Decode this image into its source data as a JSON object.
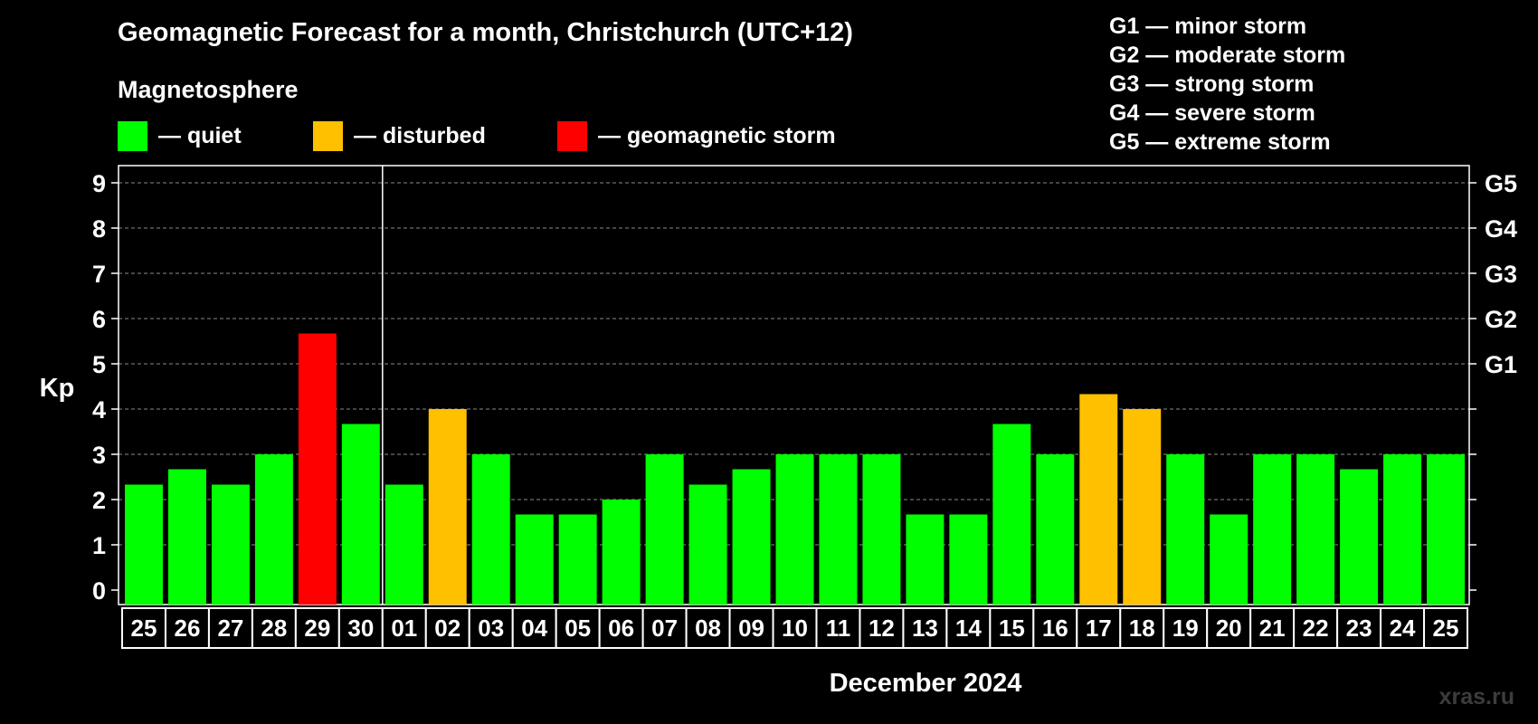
{
  "chart_data": {
    "type": "bar",
    "title": "Geomagnetic Forecast for a month, Christchurch (UTC+12)",
    "subtitle": "Magnetosphere",
    "ylabel": "Kp",
    "xlabel": "December 2024",
    "ylim": [
      0,
      9
    ],
    "y_ticks": [
      "0",
      "1",
      "2",
      "3",
      "4",
      "5",
      "6",
      "7",
      "8",
      "9"
    ],
    "right_axis_labels": [
      {
        "kp": 5,
        "label": "G1"
      },
      {
        "kp": 6,
        "label": "G2"
      },
      {
        "kp": 7,
        "label": "G3"
      },
      {
        "kp": 8,
        "label": "G4"
      },
      {
        "kp": 9,
        "label": "G5"
      }
    ],
    "categories": [
      "25",
      "26",
      "27",
      "28",
      "29",
      "30",
      "01",
      "02",
      "03",
      "04",
      "05",
      "06",
      "07",
      "08",
      "09",
      "10",
      "11",
      "12",
      "13",
      "14",
      "15",
      "16",
      "17",
      "18",
      "19",
      "20",
      "21",
      "22",
      "23",
      "24",
      "25"
    ],
    "values": [
      2.33,
      2.67,
      2.33,
      3.0,
      5.67,
      3.67,
      2.33,
      4.0,
      3.0,
      1.67,
      1.67,
      2.0,
      3.0,
      2.33,
      2.67,
      3.0,
      3.0,
      3.0,
      1.67,
      1.67,
      3.67,
      3.0,
      4.33,
      4.0,
      3.0,
      1.67,
      3.0,
      3.0,
      2.67,
      3.0,
      3.0
    ],
    "status": [
      "quiet",
      "quiet",
      "quiet",
      "quiet",
      "storm",
      "quiet",
      "quiet",
      "disturbed",
      "quiet",
      "quiet",
      "quiet",
      "quiet",
      "quiet",
      "quiet",
      "quiet",
      "quiet",
      "quiet",
      "quiet",
      "quiet",
      "quiet",
      "quiet",
      "quiet",
      "disturbed",
      "disturbed",
      "quiet",
      "quiet",
      "quiet",
      "quiet",
      "quiet",
      "quiet",
      "quiet"
    ],
    "month_divider_after_index": 5,
    "grid": true
  },
  "legend": {
    "quiet": {
      "label": "— quiet",
      "color": "#00ff00"
    },
    "disturbed": {
      "label": "— disturbed",
      "color": "#ffc000"
    },
    "storm": {
      "label": "— geomagnetic storm",
      "color": "#ff0000"
    }
  },
  "storm_scale": [
    "G1 — minor storm",
    "G2 — moderate storm",
    "G3 — strong storm",
    "G4 — severe storm",
    "G5 — extreme storm"
  ],
  "watermark": "xras.ru"
}
